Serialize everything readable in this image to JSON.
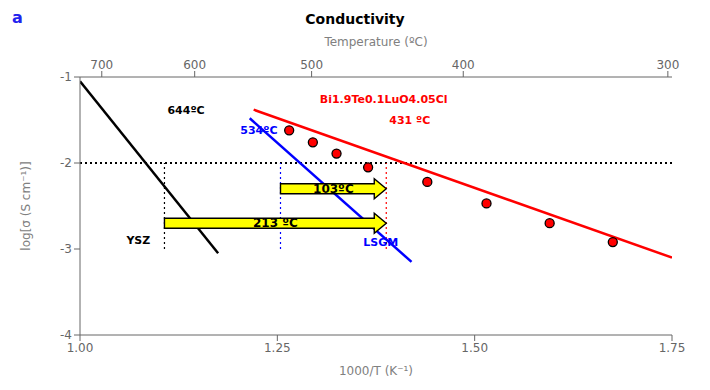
{
  "chart_data": {
    "type": "line",
    "title": "Conductivity",
    "xlabel": "1000/T (K⁻¹)",
    "ylabel": "log[σ (S cm⁻¹)]",
    "x2label": "Temperature (ºC)",
    "xlim": [
      1.0,
      1.75
    ],
    "xticks": [
      {
        "value": 1.0,
        "label": "1.00"
      },
      1.25,
      {
        "value": 1.5,
        "label": "1.50"
      },
      1.75
    ],
    "x2lim": [
      1.0,
      1.75
    ],
    "x2ticks": [
      {
        "value": 1.027591,
        "label": "700"
      },
      {
        "value": 1.145279,
        "label": "600"
      },
      {
        "value": 1.29341,
        "label": "500"
      },
      {
        "value": 1.485553,
        "label": "400"
      },
      {
        "value": 1.744744,
        "label": "300"
      }
    ],
    "ylim": [
      -4,
      -1
    ],
    "yticks": [
      -4,
      -3,
      -2,
      -1
    ],
    "series": [
      {
        "type": "line",
        "color": "black",
        "x": [
          1.0,
          1.175
        ],
        "values": [
          -1.05,
          -3.05
        ]
      },
      {
        "type": "line",
        "color": "blue",
        "x": [
          1.215,
          1.42
        ],
        "values": [
          -1.48,
          -3.15
        ]
      },
      {
        "type": "line",
        "color": "red",
        "x": [
          1.22,
          1.75
        ],
        "values": [
          -1.38,
          -3.1
        ]
      },
      {
        "type": "scatter",
        "color": "red",
        "x": [
          1.265,
          1.295,
          1.325,
          1.365,
          1.44,
          1.515,
          1.595,
          1.675
        ],
        "values": [
          -1.62,
          -1.76,
          -1.89,
          -2.05,
          -2.22,
          -2.47,
          -2.7,
          -2.92
        ]
      }
    ],
    "reference_lines": [
      {
        "y": -2,
        "color": "black",
        "line_style": "dotted"
      },
      {
        "x": 1.107,
        "y_from": -3,
        "y_to": -2,
        "color": "black",
        "line_style": "dotted"
      },
      {
        "x": 1.254,
        "y_from": -3,
        "y_to": -2,
        "color": "blue",
        "line_style": "dotted"
      },
      {
        "x": 1.388,
        "y_from": -3,
        "y_to": -2,
        "color": "red",
        "line_style": "dotted"
      }
    ],
    "arrows": [
      {
        "text": "213 ºC",
        "x_from": 1.107,
        "x_to": 1.388,
        "y": -2.7,
        "color": "yellow"
      },
      {
        "text": "103ºC",
        "x_from": 1.254,
        "x_to": 1.388,
        "y": -2.3,
        "color": "yellow"
      }
    ],
    "annotations": [
      {
        "text": "a",
        "color": "#2222EE"
      },
      {
        "text": "644ºC",
        "x": 1.107,
        "y": -1.38,
        "color": "black",
        "anchor": "left"
      },
      {
        "text": "534ºC",
        "x": 1.254,
        "y": -1.62,
        "color": "blue",
        "anchor": "right"
      },
      {
        "text": "431 ºC",
        "x": 1.388,
        "y": -1.5,
        "color": "red",
        "anchor": "left"
      },
      {
        "text": "Bi1.9Te0.1LuO4.05Cl",
        "x": 1.3,
        "y": -1.26,
        "color": "red",
        "anchor": "left"
      },
      {
        "text": "YSZ",
        "x": 1.055,
        "y": -2.9,
        "color": "black",
        "anchor": "left"
      },
      {
        "text": "LSGM",
        "x": 1.355,
        "y": -2.92,
        "color": "blue",
        "anchor": "left"
      }
    ]
  }
}
